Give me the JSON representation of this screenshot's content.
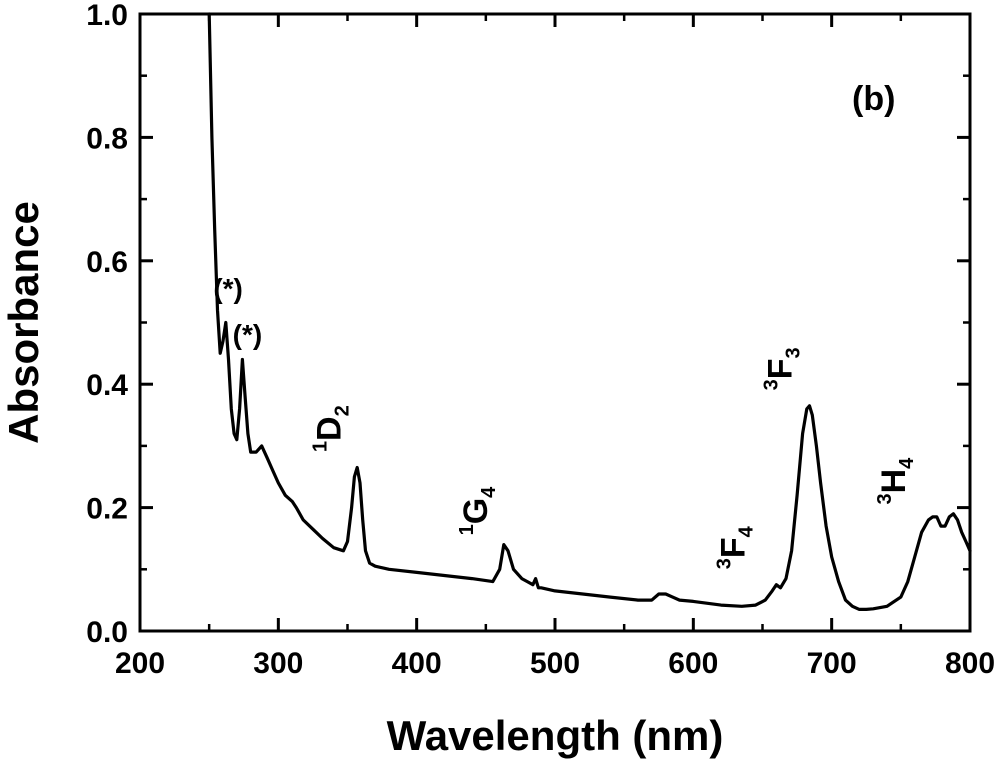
{
  "chart_data": {
    "type": "line",
    "panel_label": "(b)",
    "xlabel": "Wavelength (nm)",
    "ylabel": "Absorbance",
    "xlim": [
      200,
      800
    ],
    "ylim": [
      0.0,
      1.0
    ],
    "xticks": [
      200,
      300,
      400,
      500,
      600,
      700,
      800
    ],
    "xtick_labels": [
      "200",
      "300",
      "400",
      "500",
      "600",
      "700",
      "800"
    ],
    "yticks": [
      0.0,
      0.2,
      0.4,
      0.6,
      0.8,
      1.0
    ],
    "ytick_labels": [
      "0.0",
      "0.2",
      "0.4",
      "0.6",
      "0.8",
      "1.0"
    ],
    "series": [
      {
        "name": "Absorbance",
        "color": "#000000",
        "x": [
          250,
          252,
          254,
          256,
          258,
          260,
          262,
          264,
          266,
          268,
          270,
          272,
          274,
          276,
          278,
          280,
          284,
          288,
          292,
          296,
          300,
          305,
          310,
          313,
          318,
          325,
          332,
          340,
          347,
          350,
          353,
          355,
          357,
          359,
          361,
          363,
          366,
          370,
          380,
          400,
          420,
          440,
          455,
          460,
          463,
          466,
          470,
          476,
          480,
          484,
          486,
          488,
          490,
          500,
          520,
          540,
          560,
          570,
          575,
          580,
          585,
          590,
          600,
          620,
          635,
          645,
          652,
          657,
          660,
          663,
          667,
          671,
          675,
          679,
          682,
          684,
          686,
          689,
          692,
          696,
          700,
          705,
          710,
          715,
          720,
          725,
          730,
          740,
          750,
          755,
          760,
          765,
          770,
          773,
          776,
          779,
          782,
          785,
          788,
          791,
          794,
          797,
          800
        ],
        "y": [
          1.0,
          0.8,
          0.65,
          0.52,
          0.45,
          0.47,
          0.5,
          0.44,
          0.36,
          0.32,
          0.31,
          0.36,
          0.44,
          0.38,
          0.32,
          0.29,
          0.29,
          0.3,
          0.28,
          0.26,
          0.24,
          0.22,
          0.21,
          0.2,
          0.18,
          0.165,
          0.15,
          0.135,
          0.13,
          0.145,
          0.2,
          0.25,
          0.265,
          0.24,
          0.18,
          0.13,
          0.11,
          0.105,
          0.1,
          0.095,
          0.09,
          0.085,
          0.08,
          0.1,
          0.14,
          0.13,
          0.1,
          0.085,
          0.08,
          0.075,
          0.085,
          0.07,
          0.07,
          0.065,
          0.06,
          0.055,
          0.05,
          0.05,
          0.06,
          0.06,
          0.055,
          0.05,
          0.048,
          0.042,
          0.04,
          0.042,
          0.05,
          0.065,
          0.075,
          0.07,
          0.085,
          0.13,
          0.22,
          0.32,
          0.36,
          0.365,
          0.35,
          0.3,
          0.24,
          0.17,
          0.12,
          0.08,
          0.05,
          0.04,
          0.035,
          0.035,
          0.036,
          0.04,
          0.055,
          0.08,
          0.12,
          0.16,
          0.18,
          0.185,
          0.185,
          0.17,
          0.17,
          0.185,
          0.19,
          0.18,
          0.16,
          0.145,
          0.13
        ]
      }
    ],
    "annotations": [
      {
        "kind": "star",
        "text": "(*)",
        "x": 253,
        "y": 0.54
      },
      {
        "kind": "star",
        "text": "(*)",
        "x": 267,
        "y": 0.465
      },
      {
        "kind": "level",
        "sup": "1",
        "main": "D",
        "sub": "2",
        "x": 345,
        "y": 0.29
      },
      {
        "kind": "level",
        "sup": "1",
        "main": "G",
        "sub": "4",
        "x": 451,
        "y": 0.155
      },
      {
        "kind": "level",
        "sup": "3",
        "main": "F",
        "sub": "4",
        "x": 637,
        "y": 0.1
      },
      {
        "kind": "level",
        "sup": "3",
        "main": "F",
        "sub": "3",
        "x": 671,
        "y": 0.39
      },
      {
        "kind": "level",
        "sup": "3",
        "main": "H",
        "sub": "4",
        "x": 753,
        "y": 0.205
      }
    ]
  }
}
